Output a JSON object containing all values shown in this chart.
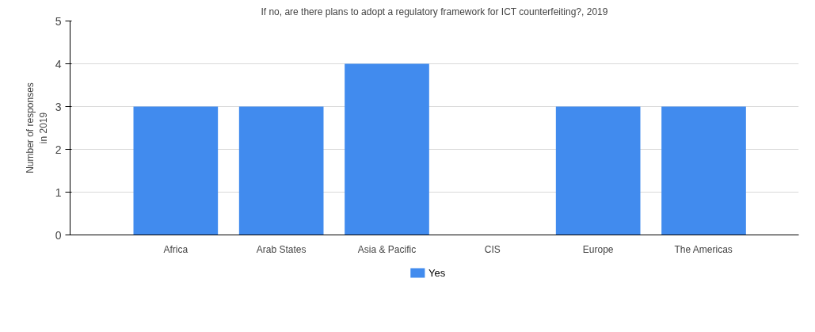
{
  "chart_data": {
    "type": "bar",
    "title": "If no, are there plans to adopt a regulatory framework for ICT counterfeiting?, 2019",
    "ylabel": "Number of responses in 2019",
    "categories": [
      "Africa",
      "Arab States",
      "Asia & Pacific",
      "CIS",
      "Europe",
      "The Americas"
    ],
    "series": [
      {
        "name": "Yes",
        "color": "#418bee",
        "values": [
          3,
          3,
          4,
          0,
          3,
          3
        ]
      }
    ],
    "ylim": [
      0,
      5
    ],
    "yticks": [
      0,
      1,
      2,
      3,
      4,
      5
    ],
    "grid": "y",
    "legend": "bottom"
  }
}
